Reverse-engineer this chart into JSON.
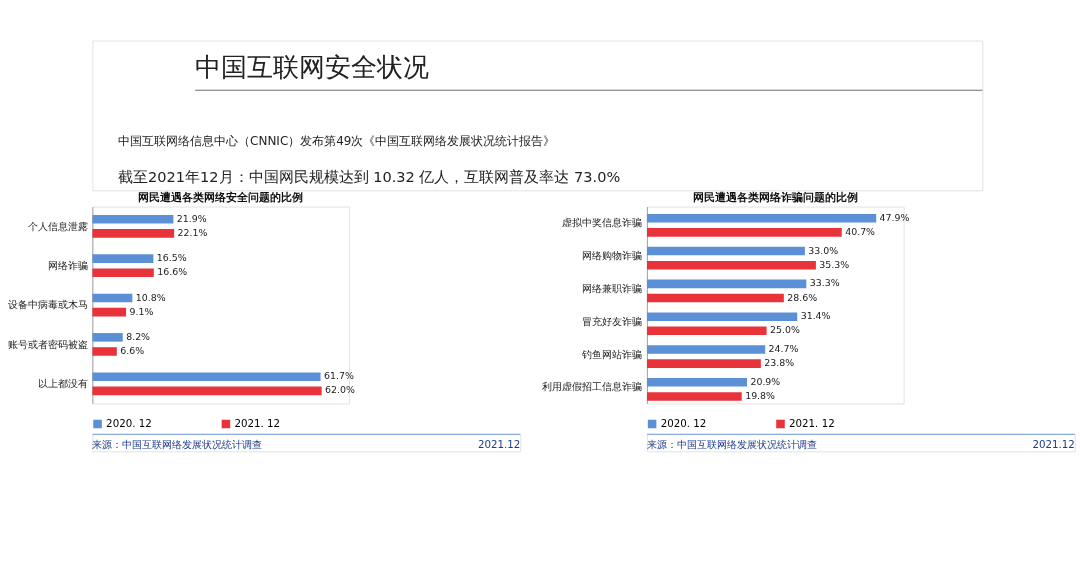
{
  "chart_data": [
    {
      "type": "bar",
      "orientation": "horizontal",
      "title": "网民遭遇各类网络安全问题的比例",
      "annotations": [
        "中国互联网安全状况",
        "中国互联网络信息中心（CNNIC）发布第49次《中国互联网络发展状况统计报告》",
        "截至2021年12月：中国网民规模达到 10.32 亿人，互联网普及率达 73.0%",
        "来源：中国互联网络发展状况统计调查",
        "2021.12"
      ],
      "categories": [
        "个人信息泄露",
        "网络诈骗",
        "设备中病毒或木马",
        "账号或者密码被盗",
        "以上都没有"
      ],
      "series": [
        {
          "name": "2020. 12",
          "color": "#5b8fd6",
          "values": [
            21.9,
            16.5,
            10.8,
            8.2,
            61.7
          ],
          "value_labels": [
            "21.9%",
            "16.5%",
            "10.8%",
            "8.2%",
            "61.7%"
          ]
        },
        {
          "name": "2021. 12",
          "color": "#e8333a",
          "values": [
            22.1,
            16.6,
            9.1,
            6.6,
            62.0
          ],
          "value_labels": [
            "22.1%",
            "16.6%",
            "9.1%",
            "6.6%",
            "62.0%"
          ]
        }
      ],
      "legend": "bottom",
      "grid": false
    },
    {
      "type": "bar",
      "orientation": "horizontal",
      "title": "网民遭遇各类网络诈骗问题的比例",
      "annotations": [
        "来源：中国互联网络发展状况统计调查",
        "2021.12"
      ],
      "categories": [
        "虚拟中奖信息诈骗",
        "网络购物诈骗",
        "网络兼职诈骗",
        "冒充好友诈骗",
        "钓鱼网站诈骗",
        "利用虚假招工信息诈骗"
      ],
      "series": [
        {
          "name": "2020. 12",
          "color": "#5b8fd6",
          "values": [
            47.9,
            33.0,
            33.3,
            31.4,
            24.7,
            20.9
          ],
          "value_labels": [
            "47.9%",
            "33.0%",
            "33.3%",
            "31.4%",
            "24.7%",
            "20.9%"
          ]
        },
        {
          "name": "2021. 12",
          "color": "#e8333a",
          "values": [
            40.7,
            35.3,
            28.6,
            25.0,
            23.8,
            19.8
          ],
          "value_labels": [
            "40.7%",
            "35.3%",
            "28.6%",
            "25.0%",
            "23.8%",
            "19.8%"
          ]
        }
      ],
      "legend": "bottom",
      "grid": false
    }
  ]
}
